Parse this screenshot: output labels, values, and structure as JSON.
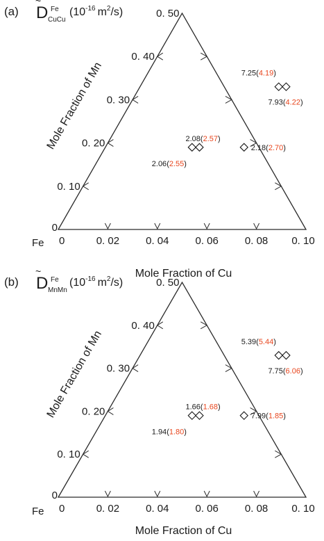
{
  "chart_data": [
    {
      "type": "scatter",
      "panel_label": "(a)",
      "quantity": {
        "symbol": "D",
        "superscript": "Fe",
        "subscript": "CuCu",
        "units": "(10",
        "units_exp": "-16",
        "units_tail": "m",
        "units_tail_exp": "2",
        "units_end": "/s)"
      },
      "xlabel": "Mole Fraction of Cu",
      "ylabel": "Mole Fraction of Mn",
      "corner_label": "Fe",
      "xlim": [
        0,
        0.1
      ],
      "ylim": [
        0,
        0.5
      ],
      "x_ticks": [
        "0",
        "0. 02",
        "0. 04",
        "0. 06",
        "0. 08",
        "0. 10"
      ],
      "y_ticks": [
        "0",
        "0. 10",
        "0. 20",
        "0. 30",
        "0. 40",
        "0. 50"
      ],
      "points": [
        {
          "x": 0.035,
          "y": 0.19,
          "value": "2.06",
          "reference": "2.55"
        },
        {
          "x": 0.038,
          "y": 0.19,
          "value": "2.08",
          "reference": "2.57"
        },
        {
          "x": 0.056,
          "y": 0.19,
          "value": "2.18",
          "reference": "2.70"
        },
        {
          "x": 0.056,
          "y": 0.33,
          "value": "7.25",
          "reference": "4.19"
        },
        {
          "x": 0.059,
          "y": 0.33,
          "value": "7.93",
          "reference": "4.22"
        }
      ],
      "label_colors": {
        "value": "#1a1a1a",
        "reference": "#e8461e"
      }
    },
    {
      "type": "scatter",
      "panel_label": "(b)",
      "quantity": {
        "symbol": "D",
        "superscript": "Fe",
        "subscript": "MnMn",
        "units": "(10",
        "units_exp": "-16",
        "units_tail": "m",
        "units_tail_exp": "2",
        "units_end": "/s)"
      },
      "xlabel": "Mole Fraction of Cu",
      "ylabel": "Mole Fraction of Mn",
      "corner_label": "Fe",
      "xlim": [
        0,
        0.1
      ],
      "ylim": [
        0,
        0.5
      ],
      "x_ticks": [
        "0",
        "0. 02",
        "0. 04",
        "0. 06",
        "0. 08",
        "0. 10"
      ],
      "y_ticks": [
        "0",
        "0. 10",
        "0. 20",
        "0. 30",
        "0. 40",
        "0. 50"
      ],
      "points": [
        {
          "x": 0.035,
          "y": 0.19,
          "value": "1.94",
          "reference": "1.80"
        },
        {
          "x": 0.038,
          "y": 0.19,
          "value": "1.66",
          "reference": "1.68"
        },
        {
          "x": 0.056,
          "y": 0.19,
          "value": "7.99",
          "reference": "1.85"
        },
        {
          "x": 0.056,
          "y": 0.33,
          "value": "5.39",
          "reference": "5.44"
        },
        {
          "x": 0.059,
          "y": 0.33,
          "value": "7.75",
          "reference": "6.06"
        }
      ],
      "label_colors": {
        "value": "#1a1a1a",
        "reference": "#e8461e"
      }
    }
  ]
}
